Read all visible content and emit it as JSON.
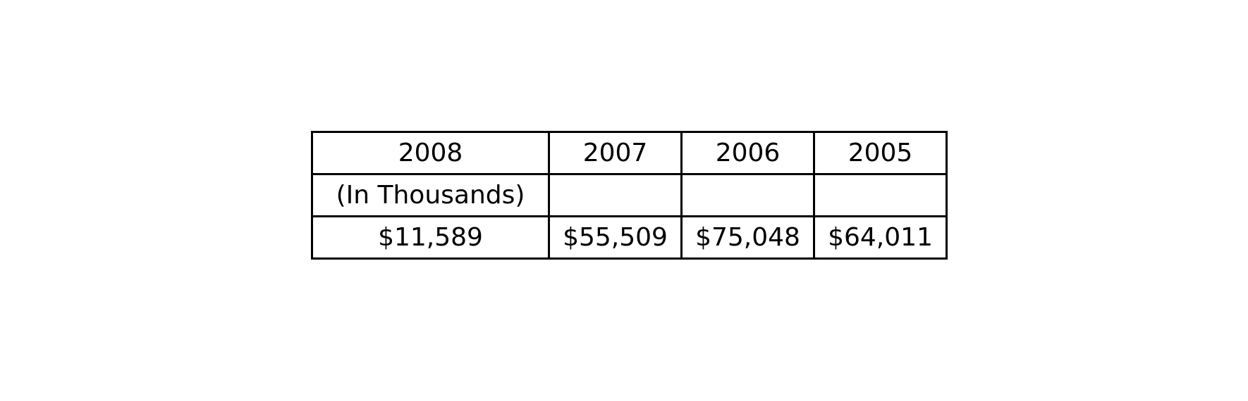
{
  "table": {
    "header": [
      "2008",
      "2007",
      "2006",
      "2005"
    ],
    "unit_row": [
      "(In Thousands)",
      "",
      "",
      ""
    ],
    "value_row": [
      "$11,589",
      "$55,509",
      "$75,048",
      "$64,011"
    ]
  }
}
